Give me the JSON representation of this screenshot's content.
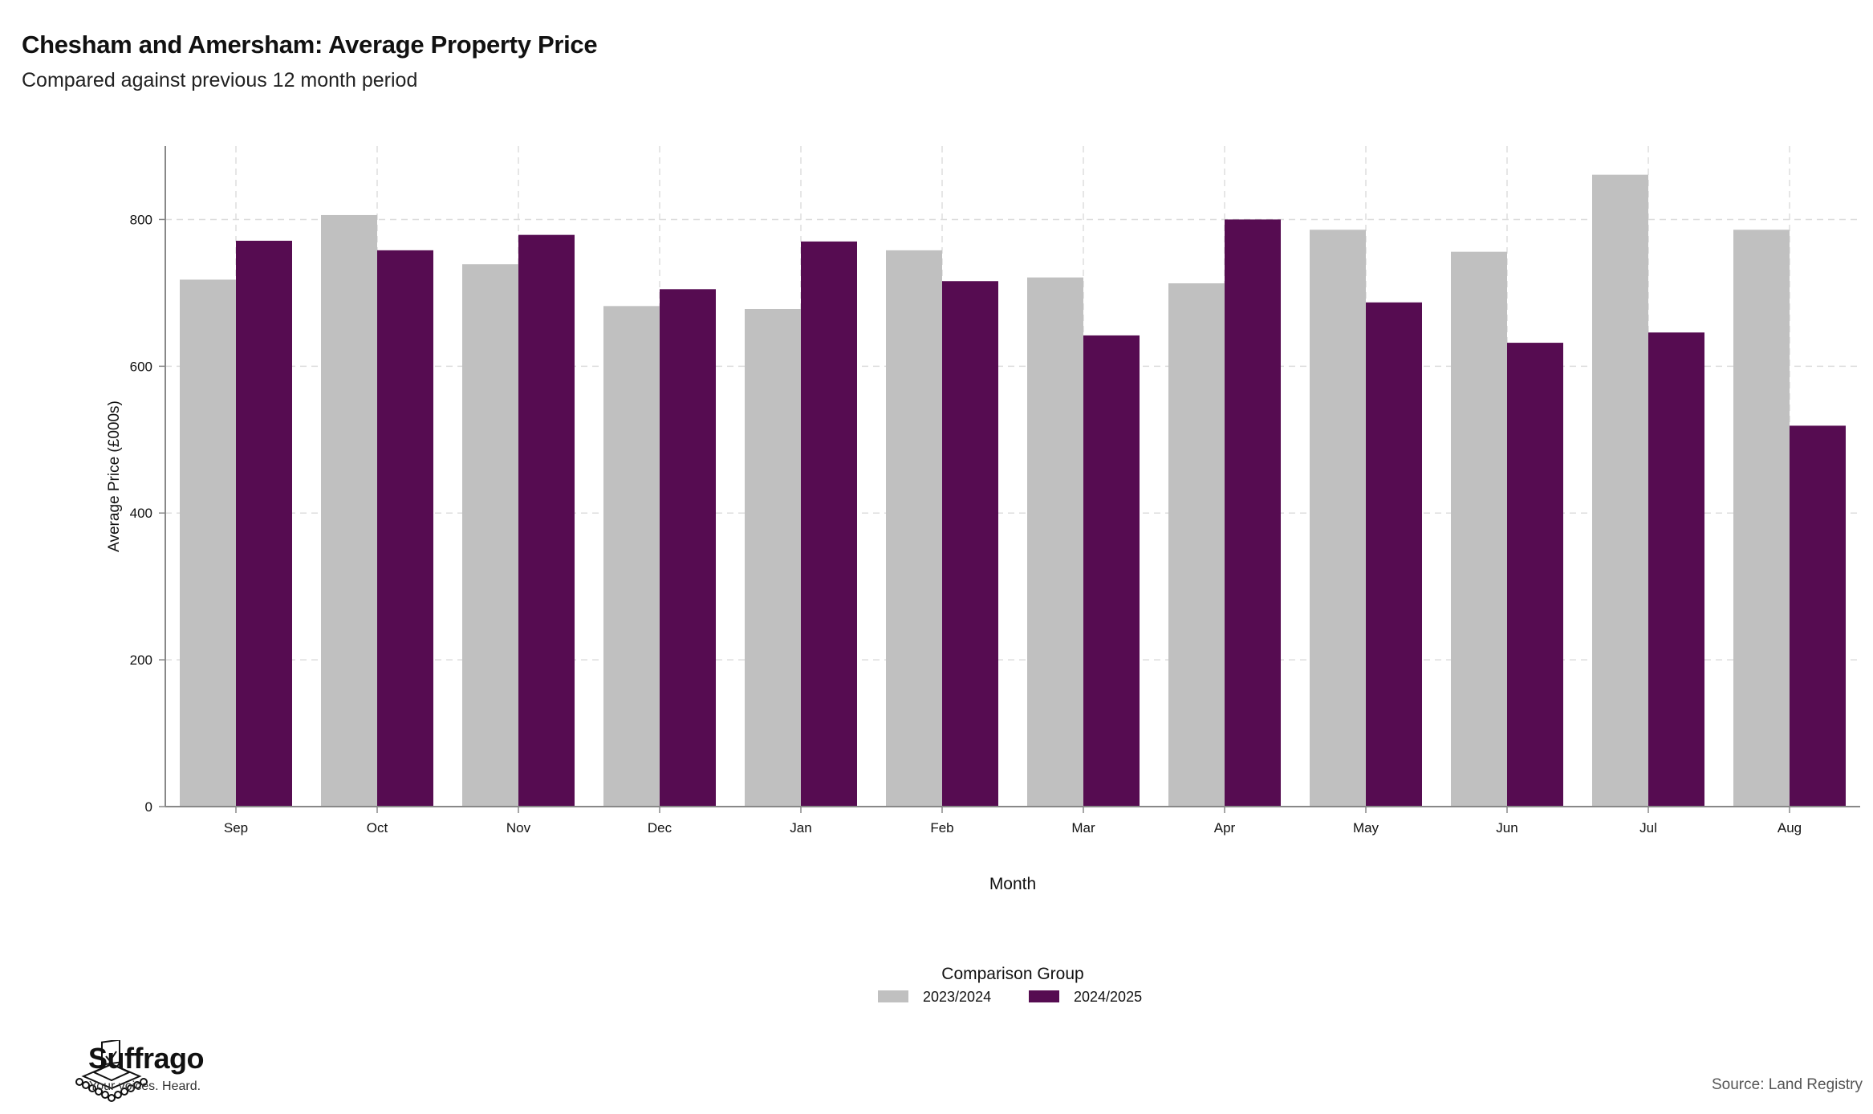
{
  "title": "Chesham and Amersham: Average Property Price",
  "subtitle": "Compared against previous 12 month period",
  "source": "Source: Land Registry",
  "brand": {
    "name": "Suffrago",
    "tagline": "Your voices. Heard."
  },
  "colors": {
    "series_2023_2024": "#c0c0c0",
    "series_2024_2025": "#560c51",
    "grid": "#dddddd",
    "axis": "#888888"
  },
  "chart_data": {
    "type": "bar",
    "xlabel": "Month",
    "ylabel": "Average Price (£000s)",
    "ylim": [
      0,
      900
    ],
    "yticks": [
      0,
      200,
      400,
      600,
      800
    ],
    "grid": true,
    "legend_title": "Comparison Group",
    "legend_position": "bottom",
    "categories": [
      "Sep",
      "Oct",
      "Nov",
      "Dec",
      "Jan",
      "Feb",
      "Mar",
      "Apr",
      "May",
      "Jun",
      "Jul",
      "Aug"
    ],
    "series": [
      {
        "name": "2023/2024",
        "color": "#c0c0c0",
        "values": [
          718,
          806,
          739,
          682,
          678,
          758,
          721,
          713,
          786,
          756,
          861,
          786
        ]
      },
      {
        "name": "2024/2025",
        "color": "#560c51",
        "values": [
          771,
          758,
          779,
          705,
          770,
          716,
          642,
          800,
          687,
          632,
          646,
          519
        ]
      }
    ]
  }
}
